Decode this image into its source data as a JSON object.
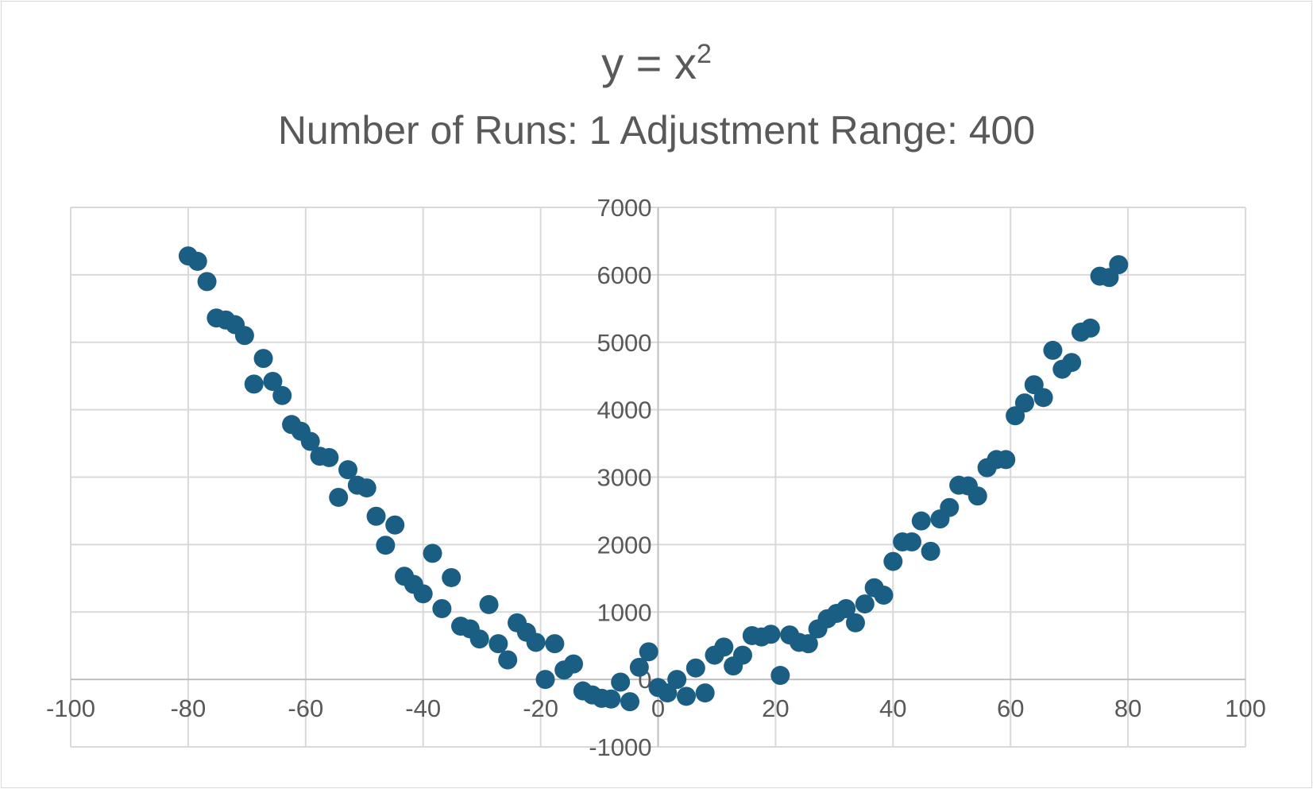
{
  "chart_data": {
    "type": "scatter",
    "title": "y = x",
    "title_superscript": "2",
    "subtitle": "Number of Runs: 1 Adjustment Range: 400",
    "xlim": [
      -100,
      100
    ],
    "ylim": [
      -1000,
      7000
    ],
    "x_ticks": [
      -100,
      -80,
      -60,
      -40,
      -20,
      0,
      20,
      40,
      60,
      80,
      100
    ],
    "y_ticks": [
      -1000,
      0,
      1000,
      2000,
      3000,
      4000,
      5000,
      6000,
      7000
    ],
    "grid": true,
    "legend": "none",
    "marker_color": "#1b5e84",
    "series": [
      {
        "points": [
          [
            -80,
            6280
          ],
          [
            -78.4,
            6200
          ],
          [
            -76.8,
            5900
          ],
          [
            -75.2,
            5360
          ],
          [
            -73.6,
            5330
          ],
          [
            -72,
            5260
          ],
          [
            -70.4,
            5100
          ],
          [
            -68.8,
            4380
          ],
          [
            -67.2,
            4760
          ],
          [
            -65.6,
            4420
          ],
          [
            -64,
            4210
          ],
          [
            -62.4,
            3780
          ],
          [
            -60.8,
            3680
          ],
          [
            -59.2,
            3530
          ],
          [
            -57.6,
            3310
          ],
          [
            -56,
            3290
          ],
          [
            -54.4,
            2700
          ],
          [
            -52.8,
            3110
          ],
          [
            -51.2,
            2880
          ],
          [
            -49.6,
            2840
          ],
          [
            -48,
            2420
          ],
          [
            -46.4,
            1990
          ],
          [
            -44.8,
            2290
          ],
          [
            -43.2,
            1530
          ],
          [
            -41.6,
            1410
          ],
          [
            -40,
            1270
          ],
          [
            -38.4,
            1870
          ],
          [
            -36.8,
            1050
          ],
          [
            -35.2,
            1510
          ],
          [
            -33.6,
            790
          ],
          [
            -32,
            750
          ],
          [
            -30.4,
            600
          ],
          [
            -28.8,
            1110
          ],
          [
            -27.2,
            530
          ],
          [
            -25.6,
            290
          ],
          [
            -24,
            840
          ],
          [
            -22.4,
            700
          ],
          [
            -20.8,
            550
          ],
          [
            -19.2,
            0
          ],
          [
            -17.6,
            530
          ],
          [
            -16,
            140
          ],
          [
            -14.4,
            230
          ],
          [
            -12.8,
            -170
          ],
          [
            -11.2,
            -230
          ],
          [
            -9.6,
            -280
          ],
          [
            -8,
            -290
          ],
          [
            -6.4,
            -40
          ],
          [
            -4.8,
            -330
          ],
          [
            -3.2,
            180
          ],
          [
            -1.6,
            410
          ],
          [
            0,
            -120
          ],
          [
            1.6,
            -200
          ],
          [
            3.2,
            0
          ],
          [
            4.8,
            -250
          ],
          [
            6.4,
            170
          ],
          [
            8,
            -200
          ],
          [
            9.6,
            360
          ],
          [
            11.2,
            480
          ],
          [
            12.8,
            200
          ],
          [
            14.4,
            360
          ],
          [
            16,
            650
          ],
          [
            17.6,
            630
          ],
          [
            19.2,
            670
          ],
          [
            20.8,
            60
          ],
          [
            22.4,
            660
          ],
          [
            24,
            550
          ],
          [
            25.6,
            530
          ],
          [
            27.2,
            750
          ],
          [
            28.8,
            900
          ],
          [
            30.4,
            980
          ],
          [
            32,
            1050
          ],
          [
            33.6,
            840
          ],
          [
            35.2,
            1120
          ],
          [
            36.8,
            1360
          ],
          [
            38.4,
            1250
          ],
          [
            40,
            1750
          ],
          [
            41.6,
            2040
          ],
          [
            43.2,
            2040
          ],
          [
            44.8,
            2350
          ],
          [
            46.4,
            1900
          ],
          [
            48,
            2380
          ],
          [
            49.6,
            2550
          ],
          [
            51.2,
            2880
          ],
          [
            52.8,
            2870
          ],
          [
            54.4,
            2720
          ],
          [
            56,
            3140
          ],
          [
            57.6,
            3260
          ],
          [
            59.2,
            3260
          ],
          [
            60.8,
            3910
          ],
          [
            62.4,
            4100
          ],
          [
            64,
            4370
          ],
          [
            65.6,
            4180
          ],
          [
            67.2,
            4880
          ],
          [
            68.8,
            4600
          ],
          [
            70.4,
            4700
          ],
          [
            72,
            5150
          ],
          [
            73.6,
            5210
          ],
          [
            75.2,
            5980
          ],
          [
            76.8,
            5960
          ],
          [
            78.4,
            6150
          ]
        ]
      }
    ]
  }
}
